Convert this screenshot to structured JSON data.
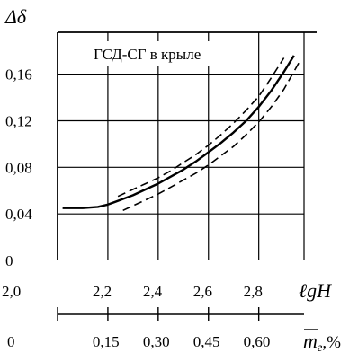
{
  "chart_data": {
    "type": "line",
    "title": "",
    "annotation": "ГСД-СГ в крыле",
    "ylabel": "Δδ",
    "xlabel": "ℓgH",
    "x2label_main": "m",
    "x2label_sub": "г",
    "x2label_suffix": ",%",
    "xlim": [
      2.0,
      2.98
    ],
    "ylim": [
      0.0,
      0.196
    ],
    "grid": true,
    "x_ticks": [
      {
        "value": 2.0,
        "label": "2,0"
      },
      {
        "value": 2.2,
        "label": "2,2"
      },
      {
        "value": 2.4,
        "label": "2,4"
      },
      {
        "value": 2.6,
        "label": "2,6"
      },
      {
        "value": 2.8,
        "label": "2,8"
      }
    ],
    "y_ticks": [
      {
        "value": 0.0,
        "label": "0"
      },
      {
        "value": 0.04,
        "label": "0,04"
      },
      {
        "value": 0.08,
        "label": "0,08"
      },
      {
        "value": 0.12,
        "label": "0,12"
      },
      {
        "value": 0.16,
        "label": "0,16"
      }
    ],
    "x2_ticks": [
      {
        "value": 2.0,
        "label": "0"
      },
      {
        "value": 2.2,
        "label": "0,15"
      },
      {
        "value": 2.4,
        "label": "0,30"
      },
      {
        "value": 2.6,
        "label": "0,45"
      },
      {
        "value": 2.8,
        "label": "0,60"
      }
    ],
    "series": [
      {
        "style": "solid",
        "x": [
          2.02,
          2.1,
          2.16,
          2.2,
          2.25,
          2.3,
          2.35,
          2.4,
          2.45,
          2.5,
          2.55,
          2.6,
          2.65,
          2.7,
          2.75,
          2.8,
          2.85,
          2.9,
          2.94
        ],
        "y": [
          0.045,
          0.045,
          0.046,
          0.048,
          0.052,
          0.056,
          0.061,
          0.066,
          0.072,
          0.078,
          0.085,
          0.093,
          0.101,
          0.11,
          0.12,
          0.132,
          0.146,
          0.162,
          0.176
        ]
      },
      {
        "style": "dashed",
        "x": [
          2.24,
          2.3,
          2.35,
          2.4,
          2.45,
          2.5,
          2.55,
          2.6,
          2.65,
          2.7,
          2.75,
          2.8,
          2.85,
          2.9
        ],
        "y": [
          0.055,
          0.061,
          0.066,
          0.071,
          0.077,
          0.084,
          0.091,
          0.099,
          0.108,
          0.118,
          0.129,
          0.141,
          0.157,
          0.174
        ]
      },
      {
        "style": "dashed",
        "x": [
          2.26,
          2.3,
          2.35,
          2.4,
          2.45,
          2.5,
          2.55,
          2.6,
          2.65,
          2.7,
          2.75,
          2.8,
          2.85,
          2.9,
          2.96
        ],
        "y": [
          0.043,
          0.047,
          0.052,
          0.057,
          0.063,
          0.069,
          0.075,
          0.082,
          0.09,
          0.098,
          0.108,
          0.119,
          0.132,
          0.147,
          0.17
        ]
      }
    ]
  }
}
